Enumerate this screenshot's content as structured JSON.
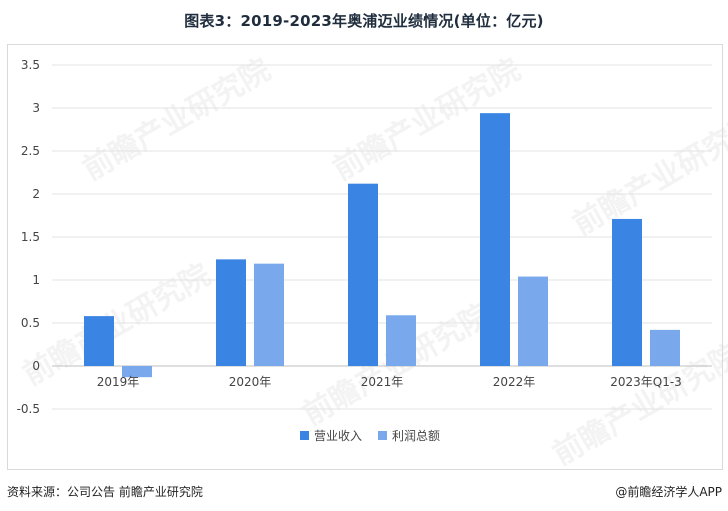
{
  "title": "图表3：2019-2023年奥浦迈业绩情况(单位：亿元)",
  "watermark_text": "前瞻产业研究院",
  "footer": {
    "source": "资料来源：公司公告 前瞻产业研究院",
    "brand": "@前瞻经济学人APP"
  },
  "chart_data": {
    "type": "bar",
    "categories": [
      "2019年",
      "2020年",
      "2021年",
      "2022年",
      "2023年Q1-3"
    ],
    "series": [
      {
        "name": "营业收入",
        "color": "#3a84e4",
        "values": [
          0.58,
          1.24,
          2.12,
          2.94,
          1.71
        ]
      },
      {
        "name": "利润总额",
        "color": "#79a9ec",
        "values": [
          -0.13,
          1.19,
          0.59,
          1.04,
          0.42
        ]
      }
    ],
    "yticks": [
      "3.5",
      "3",
      "2.5",
      "2",
      "1.5",
      "1",
      "0.5",
      "0",
      "-0.5"
    ],
    "ylim": [
      -0.5,
      3.5
    ],
    "grid": true,
    "legend_position": "bottom"
  }
}
